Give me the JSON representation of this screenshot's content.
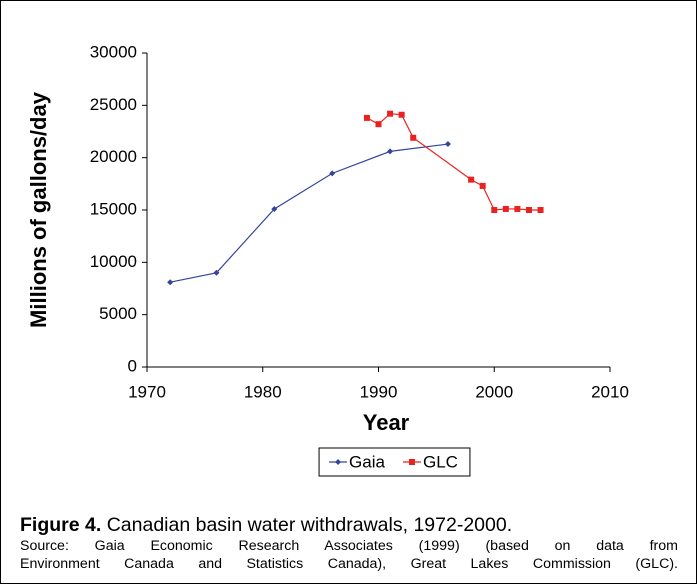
{
  "chart_data": {
    "type": "line",
    "xlabel": "Year",
    "ylabel": "Millions of gallons/day",
    "series": [
      {
        "name": "Gaia",
        "color": "#34469c",
        "marker": "diamond",
        "x": [
          1972,
          1976,
          1981,
          1986,
          1991,
          1996
        ],
        "values": [
          8100,
          9000,
          15100,
          18500,
          20600,
          21300
        ]
      },
      {
        "name": "GLC",
        "color": "#e8231f",
        "marker": "square",
        "x": [
          1989,
          1990,
          1991,
          1992,
          1993,
          1998,
          1999,
          2000,
          2001,
          2002,
          2003,
          2004
        ],
        "values": [
          23800,
          23200,
          24200,
          24100,
          21900,
          17900,
          17300,
          15000,
          15100,
          15100,
          15000,
          15000
        ]
      }
    ],
    "xlim": [
      1970,
      2010
    ],
    "xticks": [
      1970,
      1980,
      1990,
      2000,
      2010
    ],
    "ylim": [
      0,
      30000
    ],
    "yticks": [
      0,
      5000,
      10000,
      15000,
      20000,
      25000,
      30000
    ],
    "grid": false,
    "legend": "bottom"
  },
  "caption": {
    "label": "Figure 4.",
    "text": "Canadian basin water withdrawals, 1972-2000.",
    "source": [
      "Source: Gaia Economic Research Associates (1999) (based on data from",
      "Environment Canada and Statistics Canada), Great Lakes Commission (GLC)."
    ]
  }
}
